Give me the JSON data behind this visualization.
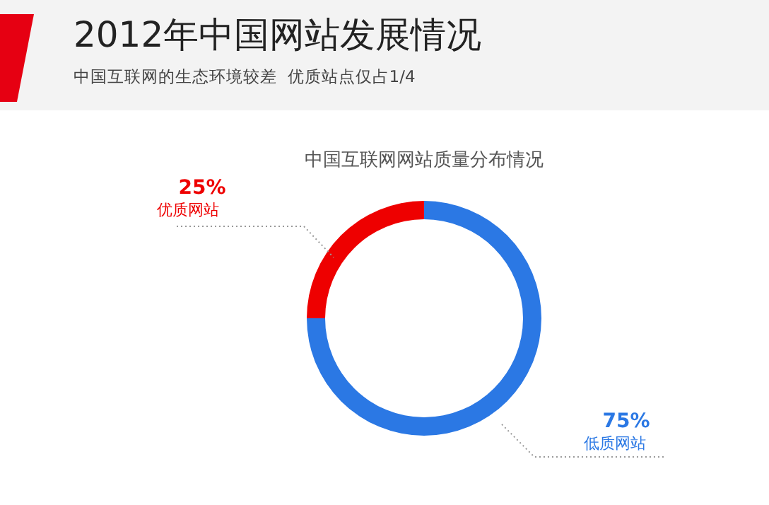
{
  "chart_data": {
    "type": "donut",
    "title": "2012年中国网站发展情况",
    "subtitle": "中国互联网的生态环境较差  优质站点仅占1/4",
    "annotations": [
      "中国互联网网站质量分布情况"
    ],
    "categories": [
      "优质网站",
      "低质网站"
    ],
    "values": [
      25,
      75
    ],
    "colors": [
      "#ee0000",
      "#2b78e4"
    ],
    "value_labels": [
      "25%",
      "75%"
    ]
  }
}
